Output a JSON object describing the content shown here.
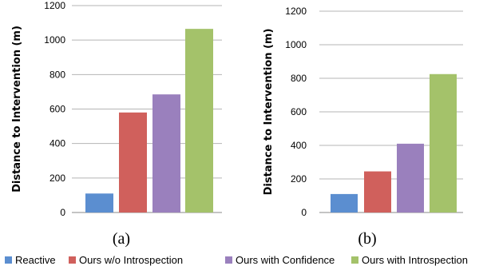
{
  "chart_data": [
    {
      "type": "bar",
      "caption": "(a)",
      "ylabel": "Distance to Intervention (m)",
      "ylim": [
        0,
        1200
      ],
      "yticks": [
        0,
        200,
        400,
        600,
        800,
        1000,
        1200
      ],
      "grid": true,
      "series": [
        {
          "name": "Reactive",
          "values": [
            110
          ]
        },
        {
          "name": "Ours w/o Introspection",
          "values": [
            580
          ]
        },
        {
          "name": "Ours with Confidence",
          "values": [
            685
          ]
        },
        {
          "name": "Ours with Introspection",
          "values": [
            1065
          ]
        }
      ]
    },
    {
      "type": "bar",
      "caption": "(b)",
      "ylabel": "Distance to Intervention (m)",
      "ylim": [
        0,
        1200
      ],
      "yticks": [
        0,
        200,
        400,
        600,
        800,
        1000,
        1200
      ],
      "grid": true,
      "series": [
        {
          "name": "Reactive",
          "values": [
            110
          ]
        },
        {
          "name": "Ours w/o Introspection",
          "values": [
            245
          ]
        },
        {
          "name": "Ours with Confidence",
          "values": [
            410
          ]
        },
        {
          "name": "Ours with Introspection",
          "values": [
            825
          ]
        }
      ]
    }
  ],
  "colors": [
    "#5b8ed0",
    "#d0605c",
    "#9a80bd",
    "#a4c26a"
  ],
  "legend": {
    "position": "bottom",
    "items": [
      "Reactive",
      "Ours w/o Introspection",
      "Ours with Confidence",
      "Ours with Introspection"
    ]
  }
}
